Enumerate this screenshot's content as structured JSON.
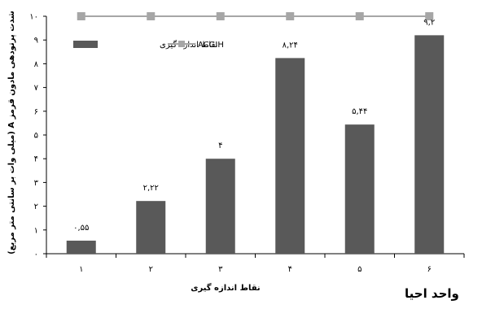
{
  "chart_data": {
    "type": "bar",
    "categories": [
      "١",
      "٢",
      "٣",
      "۴",
      "۵",
      "۶"
    ],
    "series": [
      {
        "name": "نقاط اندازه گیری",
        "type": "bar",
        "color": "#595959",
        "values": [
          0.55,
          2.22,
          4,
          8.24,
          5.44,
          9.2
        ],
        "labels": [
          "۰,۵۵",
          "۲,۲۲",
          "۴",
          "۸,۲۴",
          "۵,۴۴",
          "۹,۲"
        ]
      },
      {
        "name": "ACGIH",
        "type": "line",
        "color": "#a6a6a6",
        "marker": "square",
        "values": [
          10,
          10,
          10,
          10,
          10,
          10
        ]
      }
    ],
    "xlabel": "نقاط اندازه گیری",
    "ylabel": "شدت پرتودهی مادون قرمز A (میلی وات بر سانتی متر مربع)",
    "ylim": [
      0,
      10
    ],
    "yticks": [
      0,
      1,
      2,
      3,
      4,
      5,
      6,
      7,
      8,
      9,
      10
    ],
    "ytick_labels": [
      "٠",
      "١",
      "٢",
      "٣",
      "۴",
      "۵",
      "۶",
      "٧",
      "٨",
      "٩",
      "١٠"
    ],
    "grid": false,
    "legend_position": "top-left"
  },
  "caption": "واحد احیا"
}
